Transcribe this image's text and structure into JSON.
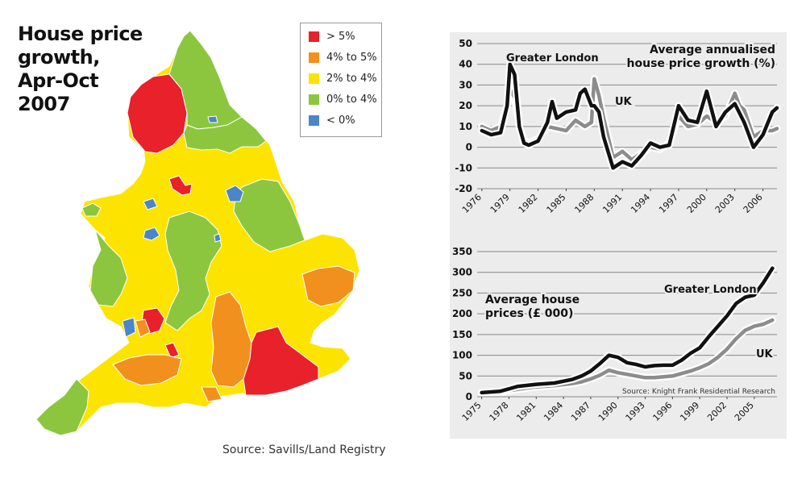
{
  "map": {
    "title_lines": [
      "House price",
      "growth,",
      "Apr-Oct",
      "2007"
    ],
    "source": "Source: Savills/Land Registry",
    "legend": [
      {
        "label": "> 5%",
        "color": "#e8212b"
      },
      {
        "label": "4% to 5%",
        "color": "#f2901e"
      },
      {
        "label": "2% to 4%",
        "color": "#fde300"
      },
      {
        "label": "0% to 4%",
        "color": "#8cc63f"
      },
      {
        "label": "< 0%",
        "color": "#4a86c8"
      }
    ]
  },
  "chart_data": [
    {
      "type": "line",
      "title": "Average annualised house price growth (%)",
      "title_lines": [
        "Average annualised",
        "house price growth (%)"
      ],
      "ylim": [
        -20,
        50
      ],
      "yticks": [
        "50",
        "40",
        "30",
        "20",
        "10",
        "0",
        "-10",
        "-20"
      ],
      "xticks": [
        "1976",
        "1979",
        "1982",
        "1985",
        "1988",
        "1991",
        "1994",
        "1997",
        "2000",
        "2003",
        "2006"
      ],
      "xlim": [
        1975.5,
        2007.5
      ],
      "grid": true,
      "series": [
        {
          "name": "Greater London",
          "color": "#111111",
          "x": [
            1976,
            1977,
            1978,
            1978.7,
            1979,
            1979.5,
            1980,
            1980.5,
            1981,
            1982,
            1983,
            1983.5,
            1984,
            1985,
            1986,
            1986.5,
            1987,
            1987.7,
            1988,
            1988.5,
            1989,
            1990,
            1991,
            1992,
            1993,
            1994,
            1995,
            1996,
            1997,
            1998,
            1999,
            2000,
            2001,
            2002,
            2003,
            2004,
            2005,
            2006,
            2007,
            2007.5
          ],
          "y": [
            8,
            6,
            7,
            20,
            40,
            35,
            10,
            2,
            1,
            3,
            12,
            22,
            14,
            17,
            18,
            26,
            28,
            20,
            20,
            17,
            5,
            -10,
            -7,
            -9,
            -4,
            2,
            0,
            1,
            20,
            13,
            12,
            27,
            10,
            17,
            21,
            12,
            0,
            6,
            17,
            19
          ]
        },
        {
          "name": "UK",
          "color": "#8c8c8c",
          "x": [
            1976,
            1977,
            1978,
            1978.7,
            1979,
            1979.5,
            1980,
            1980.5,
            1981,
            1982,
            1983,
            1984,
            1985,
            1986,
            1987,
            1987.7,
            1988,
            1988.5,
            1989,
            1990,
            1991,
            1992,
            1993,
            1994,
            1995,
            1996,
            1997,
            1998,
            1999,
            2000,
            2001,
            2002,
            2003,
            2003.5,
            2004,
            2005,
            2006,
            2007,
            2007.5
          ],
          "y": [
            10,
            8,
            10,
            20,
            28,
            24,
            10,
            3,
            2,
            4,
            10,
            9,
            8,
            13,
            10,
            12,
            33,
            25,
            14,
            -5,
            -2,
            -6,
            -3,
            0,
            -1,
            2,
            15,
            10,
            11,
            15,
            12,
            15,
            26,
            20,
            18,
            5,
            8,
            8,
            9
          ]
        }
      ],
      "annotations": [
        {
          "text": "Greater London"
        },
        {
          "text": "UK"
        }
      ]
    },
    {
      "type": "line",
      "title": "Average house prices (£ 000)",
      "title_lines": [
        "Average house",
        "prices (£ 000)"
      ],
      "ylim": [
        0,
        350
      ],
      "yticks": [
        "350",
        "300",
        "250",
        "200",
        "150",
        "100",
        "50",
        "0"
      ],
      "xticks": [
        "1975",
        "1978",
        "1981",
        "1984",
        "1987",
        "1990",
        "1993",
        "1996",
        "1999",
        "2002",
        "2005"
      ],
      "xlim": [
        1974.5,
        2007.5
      ],
      "grid": true,
      "source": "Source: Knight Frank Residential Research",
      "series": [
        {
          "name": "Greater London",
          "color": "#111111",
          "x": [
            1975,
            1977,
            1979,
            1981,
            1983,
            1985,
            1986,
            1987,
            1988,
            1989,
            1990,
            1991,
            1992,
            1993,
            1994,
            1995,
            1996,
            1997,
            1998,
            1999,
            2000,
            2001,
            2002,
            2003,
            2004,
            2005,
            2006,
            2007
          ],
          "y": [
            10,
            13,
            25,
            30,
            33,
            42,
            50,
            62,
            80,
            100,
            95,
            82,
            78,
            72,
            75,
            76,
            76,
            88,
            105,
            118,
            145,
            170,
            195,
            225,
            240,
            245,
            275,
            310
          ]
        },
        {
          "name": "UK",
          "color": "#8c8c8c",
          "x": [
            1975,
            1977,
            1979,
            1981,
            1983,
            1985,
            1986,
            1987,
            1988,
            1989,
            1990,
            1991,
            1992,
            1993,
            1994,
            1995,
            1996,
            1997,
            1998,
            1999,
            2000,
            2001,
            2002,
            2003,
            2004,
            2005,
            2006,
            2007
          ],
          "y": [
            10,
            11,
            18,
            24,
            27,
            32,
            36,
            43,
            52,
            64,
            58,
            54,
            50,
            46,
            46,
            48,
            50,
            56,
            62,
            70,
            80,
            95,
            115,
            140,
            160,
            170,
            175,
            185
          ]
        }
      ],
      "annotations": [
        {
          "text": "Greater London"
        },
        {
          "text": "UK"
        }
      ]
    }
  ]
}
